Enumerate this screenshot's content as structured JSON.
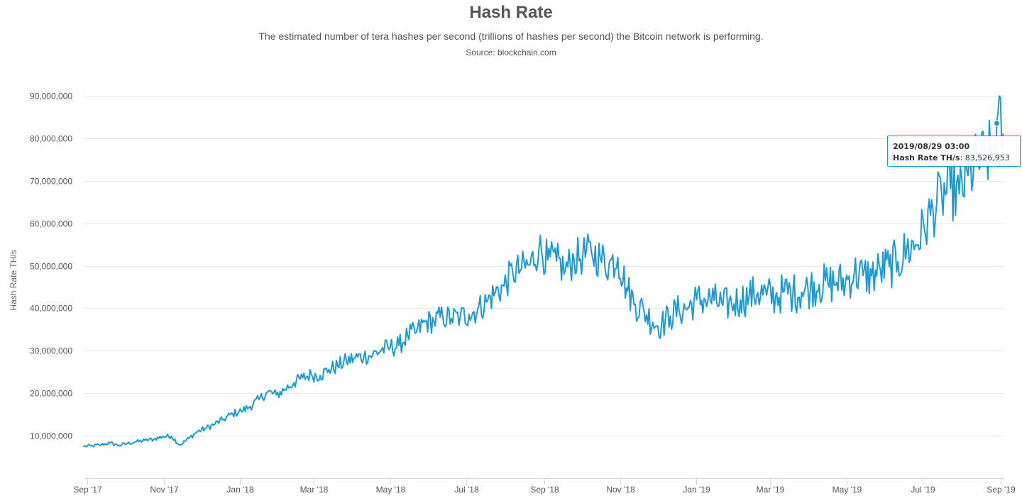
{
  "header": {
    "title": "Hash Rate",
    "subtitle": "The estimated number of tera hashes per second (trillions of hashes per second) the Bitcoin network is performing.",
    "source": "Source: blockchain.com"
  },
  "tooltip": {
    "date": "2019/08/29 03:00",
    "label": "Hash Rate TH/s",
    "value": "83,526,953"
  },
  "colors": {
    "series": "#1a9bd7",
    "grid": "#e6e6e6",
    "axis": "#ccd6eb"
  },
  "chart_data": {
    "type": "line",
    "title": "Hash Rate",
    "ylabel": "Hash Rate TH/s",
    "xlabel": "",
    "ylim": [
      0,
      90000000
    ],
    "xlim": [
      "2017-08-29",
      "2019-09-04"
    ],
    "grid": true,
    "legend": "none",
    "y_ticks": [
      "10,000,000",
      "20,000,000",
      "30,000,000",
      "40,000,000",
      "50,000,000",
      "60,000,000",
      "70,000,000",
      "80,000,000",
      "90,000,000"
    ],
    "y_tick_values": [
      10000000,
      20000000,
      30000000,
      40000000,
      50000000,
      60000000,
      70000000,
      80000000,
      90000000
    ],
    "x_ticks": [
      "Sep '17",
      "Nov '17",
      "Jan '18",
      "Mar '18",
      "May '18",
      "Jul '18",
      "Sep '18",
      "Nov '18",
      "Jan '19",
      "Mar '19",
      "May '19",
      "Jul '19",
      "Sep '19"
    ],
    "x_tick_dates": [
      "2017-09-01",
      "2017-11-01",
      "2018-01-01",
      "2018-03-01",
      "2018-05-01",
      "2018-07-01",
      "2018-09-01",
      "2018-11-01",
      "2019-01-01",
      "2019-03-01",
      "2019-05-01",
      "2019-07-01",
      "2019-09-01"
    ],
    "series": [
      {
        "dates": [
          "2017-08-29",
          "2017-09-05",
          "2017-09-12",
          "2017-09-19",
          "2017-09-26",
          "2017-10-03",
          "2017-10-10",
          "2017-10-17",
          "2017-10-24",
          "2017-10-31",
          "2017-11-07",
          "2017-11-14",
          "2017-11-21",
          "2017-11-28",
          "2017-12-05",
          "2017-12-12",
          "2017-12-19",
          "2017-12-26",
          "2018-01-02",
          "2018-01-09",
          "2018-01-16",
          "2018-01-23",
          "2018-01-30",
          "2018-02-06",
          "2018-02-13",
          "2018-02-20",
          "2018-02-27",
          "2018-03-06",
          "2018-03-13",
          "2018-03-20",
          "2018-03-27",
          "2018-04-03",
          "2018-04-10",
          "2018-04-17",
          "2018-04-24",
          "2018-05-01",
          "2018-05-08",
          "2018-05-15",
          "2018-05-22",
          "2018-05-29",
          "2018-06-05",
          "2018-06-12",
          "2018-06-19",
          "2018-06-26",
          "2018-07-03",
          "2018-07-10",
          "2018-07-17",
          "2018-07-24",
          "2018-07-31",
          "2018-08-07",
          "2018-08-14",
          "2018-08-21",
          "2018-08-28",
          "2018-09-04",
          "2018-09-11",
          "2018-09-18",
          "2018-09-25",
          "2018-10-02",
          "2018-10-09",
          "2018-10-16",
          "2018-10-23",
          "2018-10-30",
          "2018-11-06",
          "2018-11-13",
          "2018-11-20",
          "2018-11-27",
          "2018-12-04",
          "2018-12-11",
          "2018-12-18",
          "2018-12-25",
          "2019-01-01",
          "2019-01-08",
          "2019-01-15",
          "2019-01-22",
          "2019-01-29",
          "2019-02-05",
          "2019-02-12",
          "2019-02-19",
          "2019-02-26",
          "2019-03-05",
          "2019-03-12",
          "2019-03-19",
          "2019-03-26",
          "2019-04-02",
          "2019-04-09",
          "2019-04-16",
          "2019-04-23",
          "2019-04-30",
          "2019-05-07",
          "2019-05-14",
          "2019-05-21",
          "2019-05-28",
          "2019-06-04",
          "2019-06-11",
          "2019-06-18",
          "2019-06-25",
          "2019-07-02",
          "2019-07-09",
          "2019-07-16",
          "2019-07-23",
          "2019-07-30",
          "2019-08-06",
          "2019-08-13",
          "2019-08-20",
          "2019-08-27",
          "2019-08-29",
          "2019-09-03"
        ],
        "values": [
          7500000,
          7600000,
          7900000,
          8300000,
          7700000,
          8200000,
          8600000,
          8900000,
          9200000,
          9800000,
          9900000,
          7800000,
          9400000,
          11000000,
          11800000,
          12800000,
          13900000,
          15200000,
          15800000,
          16900000,
          18500000,
          20300000,
          19600000,
          21000000,
          22500000,
          23600000,
          24400000,
          24200000,
          25600000,
          26400000,
          27600000,
          28300000,
          28700000,
          29000000,
          30200000,
          30800000,
          31200000,
          33600000,
          34400000,
          36800000,
          36900000,
          38100000,
          37600000,
          37900000,
          38600000,
          39700000,
          41500000,
          43700000,
          45200000,
          48500000,
          49200000,
          50300000,
          54200000,
          51400000,
          51100000,
          49000000,
          51600000,
          52400000,
          53000000,
          51800000,
          50400000,
          52000000,
          44800000,
          41000000,
          39400000,
          36700000,
          36100000,
          38200000,
          39500000,
          40100000,
          42000000,
          42000000,
          41900000,
          40700000,
          41100000,
          42000000,
          42800000,
          43700000,
          43100000,
          42600000,
          43900000,
          43600000,
          43800000,
          44900000,
          45600000,
          45700000,
          46100000,
          46200000,
          48200000,
          47700000,
          47600000,
          49100000,
          49800000,
          51000000,
          53700000,
          55000000,
          58800000,
          63200000,
          66500000,
          68200000,
          66900000,
          71200000,
          74000000,
          75500000,
          77000000,
          83526953,
          81000000
        ]
      }
    ]
  }
}
